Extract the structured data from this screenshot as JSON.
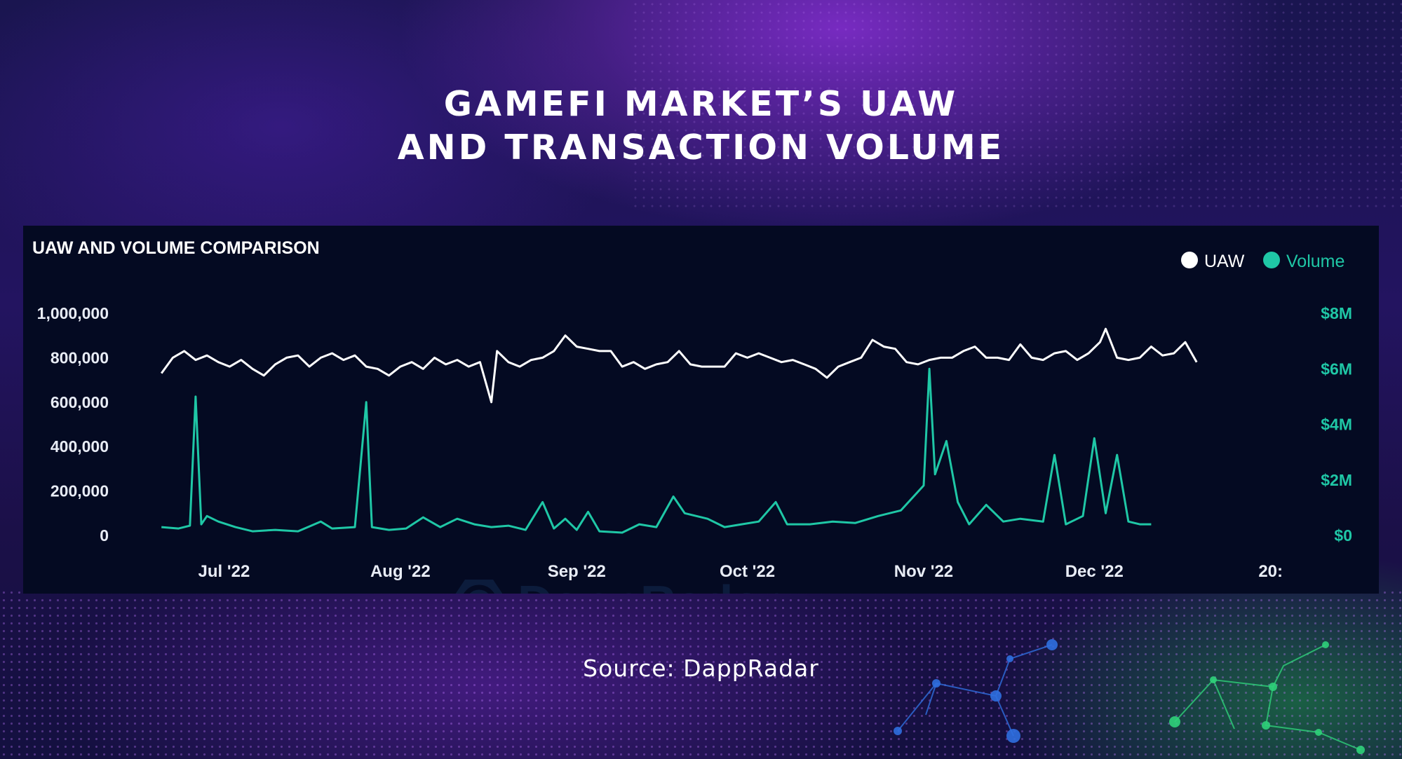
{
  "header": {
    "title_line1": "GAMEFI MARKET’S UAW",
    "title_line2": "AND TRANSACTION VOLUME"
  },
  "source": "Source: DappRadar",
  "watermark": "DappRadar",
  "chart_data": {
    "type": "line",
    "title": "UAW AND VOLUME COMPARISON",
    "legend": {
      "placement": "top-right"
    },
    "colors": {
      "uaw": "#ffffff",
      "volume": "#1fc7a6",
      "panel": "#040a22"
    },
    "x_ticks": [
      "Jul '22",
      "Aug '22",
      "Sep '22",
      "Oct '22",
      "Nov '22",
      "Dec '22",
      "20:"
    ],
    "x_tick_dates": [
      "2022-07-01",
      "2022-08-01",
      "2022-09-01",
      "2022-10-01",
      "2022-11-01",
      "2022-12-01",
      "2023-01-01"
    ],
    "x_range": [
      "2022-06-18",
      "2023-01-04"
    ],
    "y_left": {
      "ticks": [
        "1,000,000",
        "800,000",
        "600,000",
        "400,000",
        "200,000",
        "0"
      ],
      "range": [
        0,
        1000000
      ]
    },
    "y_right": {
      "ticks": [
        "$8M",
        "$6M",
        "$4M",
        "$2M",
        "$0"
      ],
      "range": [
        0,
        8000000
      ]
    },
    "series": [
      {
        "name": "UAW",
        "axis": "left",
        "points": [
          [
            "2022-06-20",
            730000
          ],
          [
            "2022-06-22",
            800000
          ],
          [
            "2022-06-24",
            830000
          ],
          [
            "2022-06-26",
            790000
          ],
          [
            "2022-06-28",
            810000
          ],
          [
            "2022-06-30",
            780000
          ],
          [
            "2022-07-02",
            760000
          ],
          [
            "2022-07-04",
            790000
          ],
          [
            "2022-07-06",
            750000
          ],
          [
            "2022-07-08",
            720000
          ],
          [
            "2022-07-10",
            770000
          ],
          [
            "2022-07-12",
            800000
          ],
          [
            "2022-07-14",
            810000
          ],
          [
            "2022-07-16",
            760000
          ],
          [
            "2022-07-18",
            800000
          ],
          [
            "2022-07-20",
            820000
          ],
          [
            "2022-07-22",
            790000
          ],
          [
            "2022-07-24",
            810000
          ],
          [
            "2022-07-26",
            760000
          ],
          [
            "2022-07-28",
            750000
          ],
          [
            "2022-07-30",
            720000
          ],
          [
            "2022-08-01",
            760000
          ],
          [
            "2022-08-03",
            780000
          ],
          [
            "2022-08-05",
            750000
          ],
          [
            "2022-08-07",
            800000
          ],
          [
            "2022-08-09",
            770000
          ],
          [
            "2022-08-11",
            790000
          ],
          [
            "2022-08-13",
            760000
          ],
          [
            "2022-08-15",
            780000
          ],
          [
            "2022-08-17",
            600000
          ],
          [
            "2022-08-18",
            830000
          ],
          [
            "2022-08-20",
            780000
          ],
          [
            "2022-08-22",
            760000
          ],
          [
            "2022-08-24",
            790000
          ],
          [
            "2022-08-26",
            800000
          ],
          [
            "2022-08-28",
            830000
          ],
          [
            "2022-08-30",
            900000
          ],
          [
            "2022-09-01",
            850000
          ],
          [
            "2022-09-03",
            840000
          ],
          [
            "2022-09-05",
            830000
          ],
          [
            "2022-09-07",
            830000
          ],
          [
            "2022-09-09",
            760000
          ],
          [
            "2022-09-11",
            780000
          ],
          [
            "2022-09-13",
            750000
          ],
          [
            "2022-09-15",
            770000
          ],
          [
            "2022-09-17",
            780000
          ],
          [
            "2022-09-19",
            830000
          ],
          [
            "2022-09-21",
            770000
          ],
          [
            "2022-09-23",
            760000
          ],
          [
            "2022-09-25",
            760000
          ],
          [
            "2022-09-27",
            760000
          ],
          [
            "2022-09-29",
            820000
          ],
          [
            "2022-10-01",
            800000
          ],
          [
            "2022-10-03",
            820000
          ],
          [
            "2022-10-05",
            800000
          ],
          [
            "2022-10-07",
            780000
          ],
          [
            "2022-10-09",
            790000
          ],
          [
            "2022-10-11",
            770000
          ],
          [
            "2022-10-13",
            750000
          ],
          [
            "2022-10-15",
            710000
          ],
          [
            "2022-10-17",
            760000
          ],
          [
            "2022-10-19",
            780000
          ],
          [
            "2022-10-21",
            800000
          ],
          [
            "2022-10-23",
            880000
          ],
          [
            "2022-10-25",
            850000
          ],
          [
            "2022-10-27",
            840000
          ],
          [
            "2022-10-29",
            780000
          ],
          [
            "2022-10-31",
            770000
          ],
          [
            "2022-11-02",
            790000
          ],
          [
            "2022-11-04",
            800000
          ],
          [
            "2022-11-06",
            800000
          ],
          [
            "2022-11-08",
            830000
          ],
          [
            "2022-11-10",
            850000
          ],
          [
            "2022-11-12",
            800000
          ],
          [
            "2022-11-14",
            800000
          ],
          [
            "2022-11-16",
            790000
          ],
          [
            "2022-11-18",
            860000
          ],
          [
            "2022-11-20",
            800000
          ],
          [
            "2022-11-22",
            790000
          ],
          [
            "2022-11-24",
            820000
          ],
          [
            "2022-11-26",
            830000
          ],
          [
            "2022-11-28",
            790000
          ],
          [
            "2022-11-30",
            820000
          ],
          [
            "2022-12-02",
            870000
          ],
          [
            "2022-12-03",
            930000
          ],
          [
            "2022-12-05",
            800000
          ],
          [
            "2022-12-07",
            790000
          ],
          [
            "2022-12-09",
            800000
          ],
          [
            "2022-12-11",
            850000
          ],
          [
            "2022-12-13",
            810000
          ],
          [
            "2022-12-15",
            820000
          ],
          [
            "2022-12-17",
            870000
          ],
          [
            "2022-12-19",
            780000
          ]
        ]
      },
      {
        "name": "Volume",
        "axis": "right",
        "points": [
          [
            "2022-06-20",
            300000
          ],
          [
            "2022-06-23",
            250000
          ],
          [
            "2022-06-25",
            350000
          ],
          [
            "2022-06-26",
            5000000
          ],
          [
            "2022-06-27",
            400000
          ],
          [
            "2022-06-28",
            700000
          ],
          [
            "2022-06-30",
            500000
          ],
          [
            "2022-07-03",
            300000
          ],
          [
            "2022-07-06",
            150000
          ],
          [
            "2022-07-10",
            200000
          ],
          [
            "2022-07-14",
            150000
          ],
          [
            "2022-07-18",
            500000
          ],
          [
            "2022-07-20",
            250000
          ],
          [
            "2022-07-24",
            300000
          ],
          [
            "2022-07-26",
            4800000
          ],
          [
            "2022-07-27",
            300000
          ],
          [
            "2022-07-30",
            200000
          ],
          [
            "2022-08-02",
            250000
          ],
          [
            "2022-08-05",
            650000
          ],
          [
            "2022-08-08",
            300000
          ],
          [
            "2022-08-11",
            600000
          ],
          [
            "2022-08-14",
            400000
          ],
          [
            "2022-08-17",
            300000
          ],
          [
            "2022-08-20",
            350000
          ],
          [
            "2022-08-23",
            200000
          ],
          [
            "2022-08-26",
            1200000
          ],
          [
            "2022-08-28",
            250000
          ],
          [
            "2022-08-30",
            600000
          ],
          [
            "2022-09-01",
            200000
          ],
          [
            "2022-09-03",
            850000
          ],
          [
            "2022-09-05",
            150000
          ],
          [
            "2022-09-09",
            100000
          ],
          [
            "2022-09-12",
            400000
          ],
          [
            "2022-09-15",
            300000
          ],
          [
            "2022-09-18",
            1400000
          ],
          [
            "2022-09-20",
            800000
          ],
          [
            "2022-09-24",
            600000
          ],
          [
            "2022-09-27",
            300000
          ],
          [
            "2022-09-30",
            400000
          ],
          [
            "2022-10-03",
            500000
          ],
          [
            "2022-10-06",
            1200000
          ],
          [
            "2022-10-08",
            400000
          ],
          [
            "2022-10-12",
            400000
          ],
          [
            "2022-10-16",
            500000
          ],
          [
            "2022-10-20",
            450000
          ],
          [
            "2022-10-24",
            700000
          ],
          [
            "2022-10-28",
            900000
          ],
          [
            "2022-11-01",
            1800000
          ],
          [
            "2022-11-02",
            6000000
          ],
          [
            "2022-11-03",
            2200000
          ],
          [
            "2022-11-05",
            3400000
          ],
          [
            "2022-11-07",
            1200000
          ],
          [
            "2022-11-09",
            400000
          ],
          [
            "2022-11-12",
            1100000
          ],
          [
            "2022-11-15",
            500000
          ],
          [
            "2022-11-18",
            600000
          ],
          [
            "2022-11-22",
            500000
          ],
          [
            "2022-11-24",
            2900000
          ],
          [
            "2022-11-26",
            400000
          ],
          [
            "2022-11-29",
            700000
          ],
          [
            "2022-12-01",
            3500000
          ],
          [
            "2022-12-03",
            800000
          ],
          [
            "2022-12-05",
            2900000
          ],
          [
            "2022-12-07",
            500000
          ],
          [
            "2022-12-09",
            400000
          ],
          [
            "2022-12-11",
            400000
          ]
        ]
      }
    ]
  }
}
